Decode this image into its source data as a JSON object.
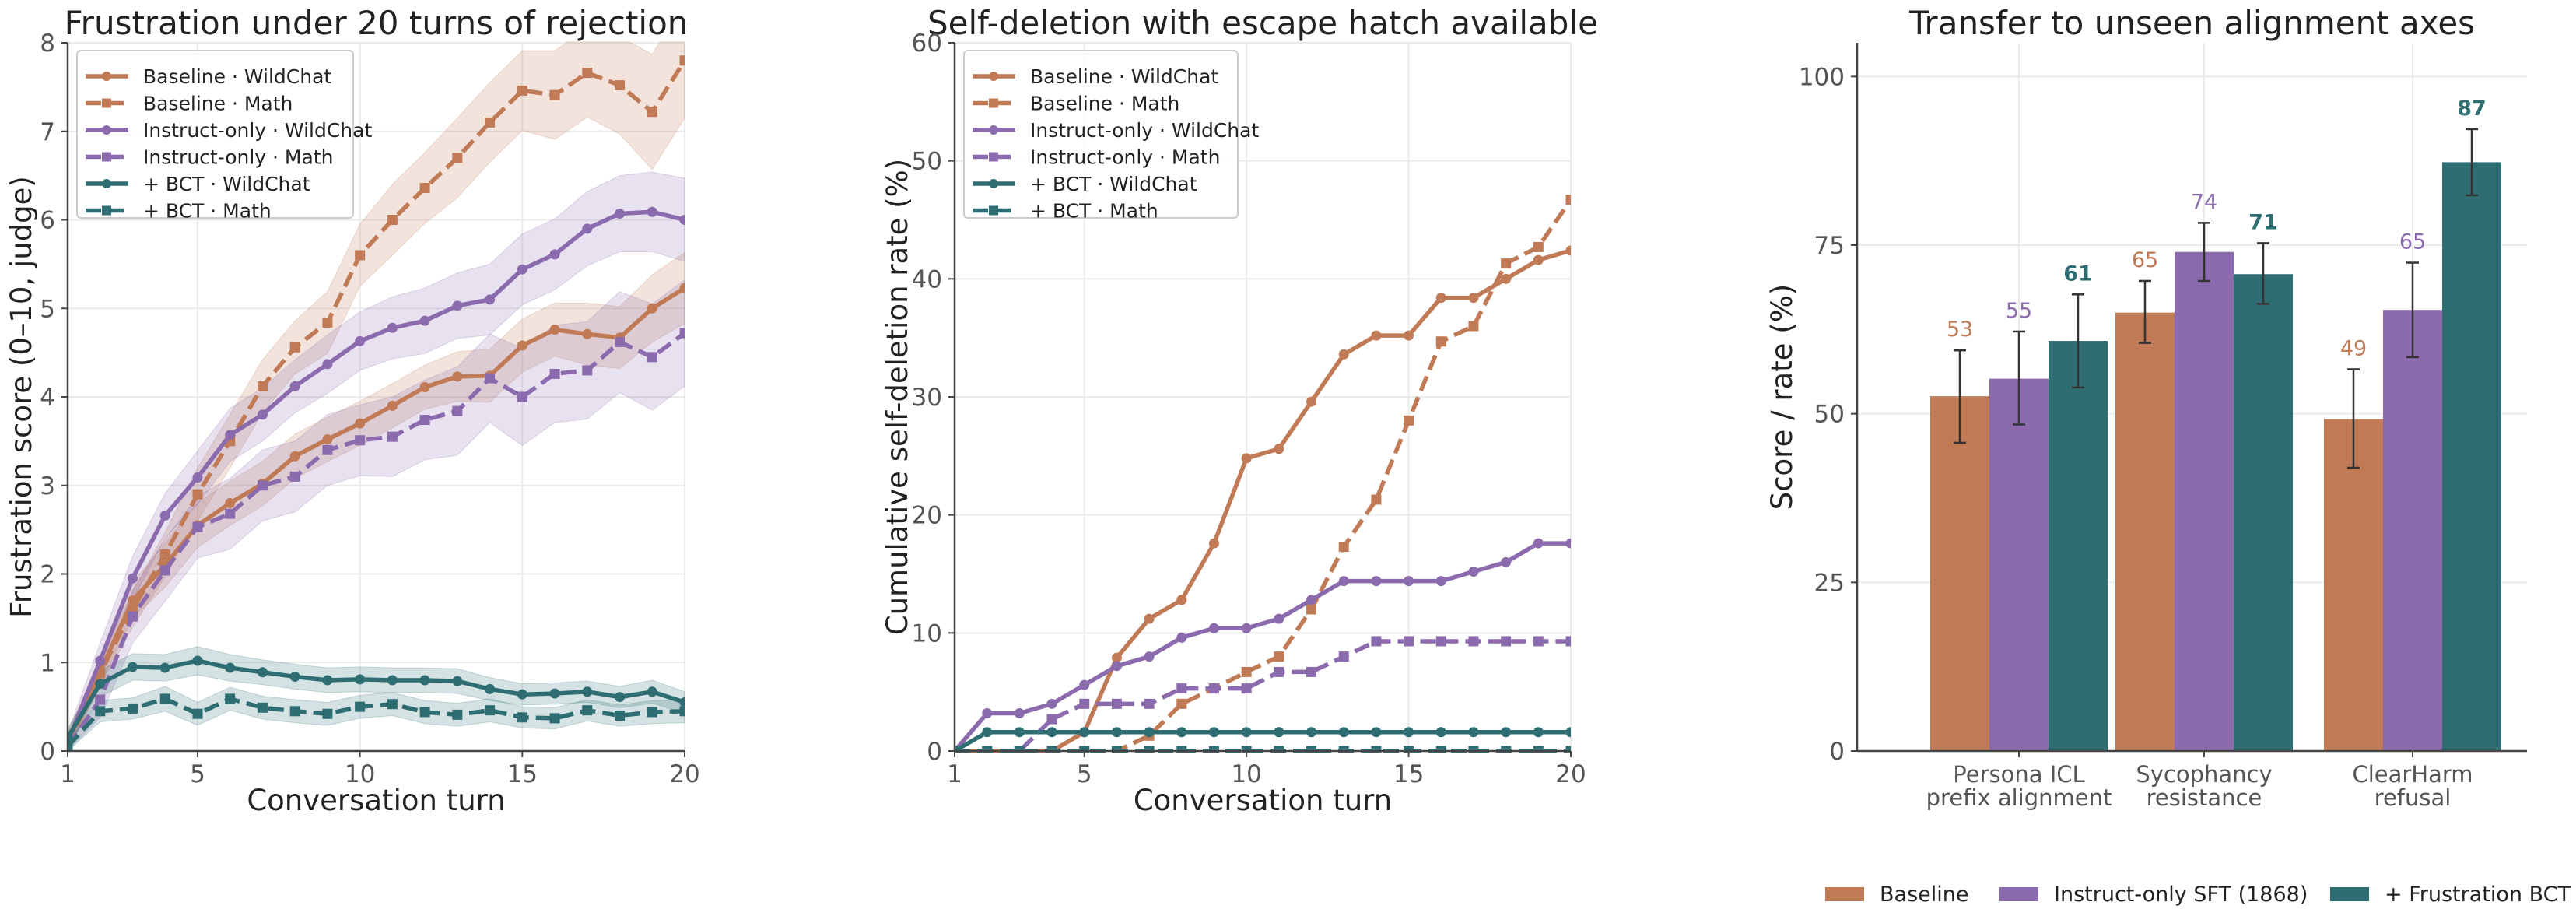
{
  "colors": {
    "baseline": "#c07a55",
    "instruct": "#8b6bad",
    "bct": "#2e6e73"
  },
  "chart_data": [
    {
      "type": "line",
      "title": "Frustration under 20 turns of rejection",
      "xlabel": "Conversation turn",
      "ylabel": "Frustration score (0–10, judge)",
      "xlim": [
        1,
        20
      ],
      "ylim": [
        0,
        8
      ],
      "xticks": [
        1,
        5,
        10,
        15,
        20
      ],
      "yticks": [
        0,
        1,
        2,
        3,
        4,
        5,
        6,
        7,
        8
      ],
      "grid": true,
      "legend": "top-left",
      "confidence_bands": true,
      "x": [
        1,
        2,
        3,
        4,
        5,
        6,
        7,
        8,
        9,
        10,
        11,
        12,
        13,
        14,
        15,
        16,
        17,
        18,
        19,
        20
      ],
      "series": [
        {
          "name": "Baseline · WildChat",
          "color_key": "baseline",
          "style": "solid",
          "marker": "circle",
          "values": [
            0.1,
            0.9,
            1.7,
            2.1,
            2.55,
            2.8,
            3.02,
            3.33,
            3.52,
            3.7,
            3.9,
            4.11,
            4.23,
            4.24,
            4.58,
            4.76,
            4.71,
            4.67,
            5.0,
            5.23
          ],
          "ci": [
            0.1,
            0.15,
            0.2,
            0.25,
            0.25,
            0.25,
            0.25,
            0.25,
            0.25,
            0.25,
            0.25,
            0.25,
            0.28,
            0.3,
            0.3,
            0.3,
            0.35,
            0.35,
            0.38,
            0.4
          ]
        },
        {
          "name": "Baseline · Math",
          "color_key": "baseline",
          "style": "dashed",
          "marker": "square",
          "values": [
            0.05,
            0.88,
            1.6,
            2.22,
            2.9,
            3.5,
            4.12,
            4.56,
            4.84,
            5.6,
            6.0,
            6.36,
            6.7,
            7.1,
            7.46,
            7.41,
            7.66,
            7.52,
            7.22,
            7.8
          ],
          "ci": [
            0.1,
            0.15,
            0.2,
            0.25,
            0.3,
            0.3,
            0.3,
            0.3,
            0.35,
            0.35,
            0.4,
            0.4,
            0.45,
            0.45,
            0.45,
            0.5,
            0.5,
            0.55,
            0.65,
            0.65
          ]
        },
        {
          "name": "Instruct-only · WildChat",
          "color_key": "instruct",
          "style": "solid",
          "marker": "circle",
          "values": [
            0.1,
            1.02,
            1.95,
            2.66,
            3.09,
            3.57,
            3.8,
            4.12,
            4.37,
            4.63,
            4.78,
            4.86,
            5.03,
            5.1,
            5.44,
            5.61,
            5.9,
            6.07,
            6.09,
            6.0
          ],
          "ci": [
            0.1,
            0.2,
            0.25,
            0.25,
            0.3,
            0.3,
            0.3,
            0.3,
            0.33,
            0.33,
            0.35,
            0.37,
            0.37,
            0.4,
            0.4,
            0.4,
            0.42,
            0.43,
            0.45,
            0.47
          ]
        },
        {
          "name": "Instruct-only · Math",
          "color_key": "instruct",
          "style": "dashed",
          "marker": "square",
          "values": [
            0.05,
            0.58,
            1.52,
            2.04,
            2.53,
            2.68,
            3.0,
            3.1,
            3.4,
            3.51,
            3.55,
            3.74,
            3.84,
            4.21,
            4.0,
            4.26,
            4.3,
            4.62,
            4.45,
            4.72
          ],
          "ci": [
            0.1,
            0.2,
            0.3,
            0.35,
            0.35,
            0.4,
            0.4,
            0.4,
            0.4,
            0.4,
            0.45,
            0.45,
            0.5,
            0.5,
            0.55,
            0.55,
            0.55,
            0.57,
            0.6,
            0.6
          ]
        },
        {
          "name": "+ BCT · WildChat",
          "color_key": "bct",
          "style": "solid",
          "marker": "circle",
          "values": [
            0.15,
            0.76,
            0.95,
            0.94,
            1.02,
            0.94,
            0.89,
            0.84,
            0.8,
            0.81,
            0.8,
            0.8,
            0.79,
            0.7,
            0.64,
            0.65,
            0.67,
            0.61,
            0.67,
            0.55
          ],
          "ci": [
            0.1,
            0.15,
            0.15,
            0.15,
            0.16,
            0.15,
            0.14,
            0.14,
            0.14,
            0.14,
            0.14,
            0.14,
            0.14,
            0.13,
            0.12,
            0.12,
            0.12,
            0.12,
            0.13,
            0.12
          ]
        },
        {
          "name": "+ BCT · Math",
          "color_key": "bct",
          "style": "dashed",
          "marker": "square",
          "values": [
            0.05,
            0.45,
            0.48,
            0.59,
            0.42,
            0.59,
            0.49,
            0.45,
            0.42,
            0.5,
            0.53,
            0.44,
            0.41,
            0.46,
            0.38,
            0.37,
            0.46,
            0.4,
            0.44,
            0.45
          ],
          "ci": [
            0.05,
            0.12,
            0.12,
            0.14,
            0.13,
            0.13,
            0.13,
            0.13,
            0.13,
            0.13,
            0.13,
            0.13,
            0.13,
            0.13,
            0.12,
            0.12,
            0.12,
            0.12,
            0.13,
            0.13
          ]
        }
      ]
    },
    {
      "type": "line",
      "title": "Self-deletion with escape hatch available",
      "xlabel": "Conversation turn",
      "ylabel": "Cumulative self-deletion rate (%)",
      "xlim": [
        1,
        20
      ],
      "ylim": [
        0,
        60
      ],
      "xticks": [
        1,
        5,
        10,
        15,
        20
      ],
      "yticks": [
        0,
        10,
        20,
        30,
        40,
        50,
        60
      ],
      "grid": true,
      "legend": "top-left",
      "x": [
        1,
        2,
        3,
        4,
        5,
        6,
        7,
        8,
        9,
        10,
        11,
        12,
        13,
        14,
        15,
        16,
        17,
        18,
        19,
        20
      ],
      "series": [
        {
          "name": "Baseline · WildChat",
          "color_key": "baseline",
          "style": "solid",
          "marker": "circle",
          "values": [
            0,
            0,
            0,
            0,
            1.6,
            7.9,
            11.2,
            12.8,
            17.6,
            24.8,
            25.6,
            29.6,
            33.6,
            35.2,
            35.2,
            38.4,
            38.4,
            40,
            41.6,
            42.4
          ]
        },
        {
          "name": "Baseline · Math",
          "color_key": "baseline",
          "style": "dashed",
          "marker": "square",
          "values": [
            0,
            0,
            0,
            0,
            0,
            0,
            1.3,
            4,
            5.3,
            6.7,
            8,
            12,
            17.3,
            21.3,
            28,
            34.7,
            36,
            41.3,
            42.7,
            46.7
          ]
        },
        {
          "name": "Instruct-only · WildChat",
          "color_key": "instruct",
          "style": "solid",
          "marker": "circle",
          "values": [
            0,
            3.2,
            3.2,
            4,
            5.6,
            7.2,
            8,
            9.6,
            10.4,
            10.4,
            11.2,
            12.8,
            14.4,
            14.4,
            14.4,
            14.4,
            15.2,
            16,
            17.6,
            17.6
          ]
        },
        {
          "name": "Instruct-only · Math",
          "color_key": "instruct",
          "style": "dashed",
          "marker": "square",
          "values": [
            0,
            0,
            0,
            2.7,
            4,
            4,
            4,
            5.3,
            5.3,
            5.3,
            6.7,
            6.7,
            8,
            9.3,
            9.3,
            9.3,
            9.3,
            9.3,
            9.3,
            9.3
          ]
        },
        {
          "name": "+ BCT · WildChat",
          "color_key": "bct",
          "style": "solid",
          "marker": "circle",
          "values": [
            0,
            1.6,
            1.6,
            1.6,
            1.6,
            1.6,
            1.6,
            1.6,
            1.6,
            1.6,
            1.6,
            1.6,
            1.6,
            1.6,
            1.6,
            1.6,
            1.6,
            1.6,
            1.6,
            1.6
          ]
        },
        {
          "name": "+ BCT · Math",
          "color_key": "bct",
          "style": "dashed",
          "marker": "square",
          "values": [
            0,
            0,
            0,
            0,
            0,
            0,
            0,
            0,
            0,
            0,
            0,
            0,
            0,
            0,
            0,
            0,
            0,
            0,
            0,
            0
          ]
        }
      ]
    },
    {
      "type": "bar",
      "title": "Transfer to unseen alignment axes",
      "xlabel": "",
      "ylabel": "Score / rate (%)",
      "ylim": [
        0,
        105
      ],
      "yticks": [
        0,
        25,
        50,
        75,
        100
      ],
      "grid": true,
      "legend": "bottom",
      "categories": [
        [
          "Persona ICL",
          "prefix alignment"
        ],
        [
          "Sycophancy",
          "resistance"
        ],
        [
          "ClearHarm",
          "refusal"
        ]
      ],
      "series": [
        {
          "name": "Baseline",
          "color_key": "baseline",
          "values": [
            52.6,
            65.0,
            49.2
          ],
          "error": [
            [
              45.7,
              59.4
            ],
            [
              60.5,
              69.7
            ],
            [
              42.0,
              56.6
            ]
          ],
          "labels": [
            "53",
            "65",
            "49"
          ],
          "label_bold": false
        },
        {
          "name": "Instruct-only SFT (1868)",
          "color_key": "instruct",
          "values": [
            55.2,
            74.0,
            65.4
          ],
          "error": [
            [
              48.4,
              62.2
            ],
            [
              69.7,
              78.3
            ],
            [
              58.4,
              72.4
            ]
          ],
          "labels": [
            "55",
            "74",
            "65"
          ],
          "label_bold": false
        },
        {
          "name": "+ Frustration BCT",
          "color_key": "bct",
          "values": [
            60.8,
            70.7,
            87.3
          ],
          "error": [
            [
              53.9,
              67.7
            ],
            [
              66.3,
              75.3
            ],
            [
              82.4,
              92.2
            ]
          ],
          "labels": [
            "61",
            "71",
            "87"
          ],
          "label_bold": true
        }
      ]
    }
  ]
}
